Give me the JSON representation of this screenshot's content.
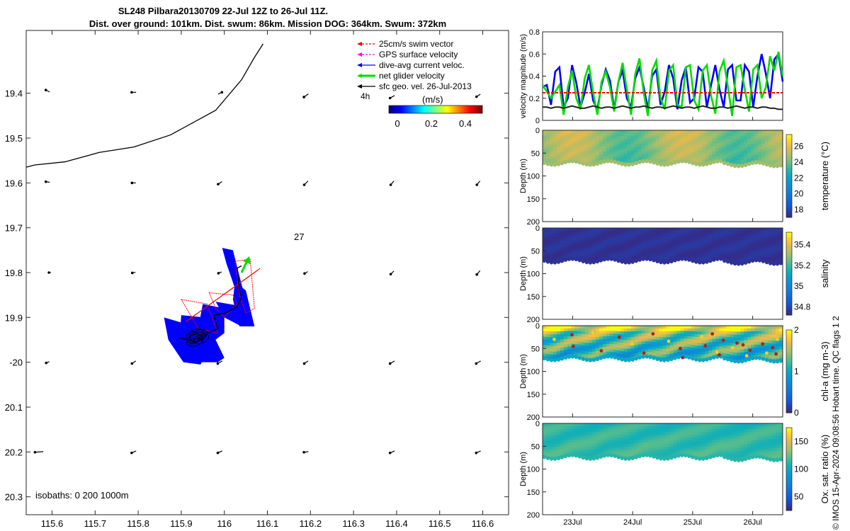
{
  "header": {
    "title_line1": "SL248 Pilbara20130709 22-Jul 12Z to 26-Jul 11Z.",
    "title_line2": "Dist. over ground: 101km. Dist. swum: 86km. Mission DOG: 364km. Swum: 372km"
  },
  "side_note": "© IMOS 15-Apr-2024 09:08:56 Hobart time. QC flags 1  2",
  "colors": {
    "swim_vector": "#ff0000",
    "gps_velocity": "#ff00ff",
    "dive_avg": "#0000ff",
    "net_glider": "#00dd00",
    "sfc_geo": "#000000",
    "coast": "#000000",
    "track": "#000000"
  },
  "chart_data": [
    {
      "type": "scatter",
      "name": "map",
      "xlim": [
        115.54,
        116.66
      ],
      "ylim": [
        -20.34,
        -19.26
      ],
      "x_ticks": [
        115.6,
        115.7,
        115.8,
        115.9,
        116.0,
        116.1,
        116.2,
        116.3,
        116.4,
        116.5,
        116.6
      ],
      "x_tick_labels": [
        "115.6",
        "115.7",
        "115.8",
        "115.9",
        "116",
        "116.1",
        "116.2",
        "116.3",
        "116.4",
        "116.5",
        "116.6"
      ],
      "y_ticks": [
        -19.4,
        -19.5,
        -19.6,
        -19.7,
        -19.8,
        -19.9,
        -20.0,
        -20.1,
        -20.2,
        -20.3
      ],
      "y_tick_labels": [
        "19.4",
        "19.5",
        "19.6",
        "19.7",
        "19.8",
        "19.9",
        "-20",
        "20.1",
        "20.2",
        "20.3"
      ],
      "legend": {
        "placement": "top-right",
        "items": [
          {
            "label": "25cm/s swim vector",
            "color": "#ff0000",
            "style": "dashed"
          },
          {
            "label": "GPS surface velocity",
            "color": "#ff00ff",
            "style": "dashed"
          },
          {
            "label": "dive-avg current veloc.",
            "color": "#0000ff",
            "style": "solid"
          },
          {
            "label": "net glider velocity",
            "color": "#00dd00",
            "style": "thick"
          },
          {
            "label": "sfc geo. vel. 26-Jul-2013",
            "color": "#000000",
            "style": "solid"
          }
        ]
      },
      "scale_label": "4h",
      "colorbar": {
        "label": "(m/s)",
        "ticks": [
          0,
          0.2,
          0.4
        ],
        "tick_labels": [
          "0",
          "0.2",
          "0.4"
        ],
        "range": [
          -0.05,
          0.5
        ]
      },
      "annotation": "27",
      "isobaths_label": "isobaths: 0   200  1000m",
      "coastline": [
        [
          115.54,
          -19.565
        ],
        [
          115.56,
          -19.56
        ],
        [
          115.63,
          -19.553
        ],
        [
          115.71,
          -19.532
        ],
        [
          115.79,
          -19.52
        ],
        [
          115.875,
          -19.493
        ],
        [
          115.98,
          -19.438
        ],
        [
          116.04,
          -19.37
        ],
        [
          116.07,
          -19.32
        ],
        [
          116.09,
          -19.29
        ]
      ],
      "glider_track": [
        [
          115.895,
          -19.945
        ],
        [
          115.935,
          -19.955
        ],
        [
          115.96,
          -19.935
        ],
        [
          115.985,
          -19.925
        ],
        [
          115.975,
          -19.895
        ],
        [
          116.005,
          -19.89
        ],
        [
          116.03,
          -19.875
        ],
        [
          116.04,
          -19.855
        ],
        [
          116.035,
          -19.84
        ],
        [
          116.03,
          -19.79
        ],
        [
          116.04,
          -19.785
        ]
      ],
      "net_velocity_arrow": [
        [
          116.04,
          -19.8
        ],
        [
          116.055,
          -19.77
        ]
      ],
      "geo_vectors": [
        {
          "x": 115.59,
          "y": -19.395,
          "u": 0.006,
          "v": -0.003
        },
        {
          "x": 115.79,
          "y": -19.398,
          "u": 0.007,
          "v": 0.0
        },
        {
          "x": 115.99,
          "y": -19.4,
          "u": -0.006,
          "v": -0.003
        },
        {
          "x": 116.19,
          "y": -19.405,
          "u": 0.007,
          "v": 0.005
        },
        {
          "x": 116.39,
          "y": -19.408,
          "u": 0.007,
          "v": 0.004
        },
        {
          "x": 116.59,
          "y": -19.405,
          "u": 0.006,
          "v": 0.004
        },
        {
          "x": 115.59,
          "y": -19.598,
          "u": 0.006,
          "v": -0.001
        },
        {
          "x": 115.79,
          "y": -19.6,
          "u": 0.006,
          "v": 0.0
        },
        {
          "x": 115.99,
          "y": -19.6,
          "u": 0.006,
          "v": 0.004
        },
        {
          "x": 116.19,
          "y": -19.6,
          "u": 0.006,
          "v": 0.006
        },
        {
          "x": 116.39,
          "y": -19.6,
          "u": 0.005,
          "v": 0.006
        },
        {
          "x": 116.59,
          "y": -19.6,
          "u": 0.005,
          "v": 0.006
        },
        {
          "x": 115.595,
          "y": -19.8,
          "u": 0.003,
          "v": 0.0
        },
        {
          "x": 115.79,
          "y": -19.8,
          "u": 0.005,
          "v": 0.001
        },
        {
          "x": 115.99,
          "y": -19.8,
          "u": 0.005,
          "v": 0.002
        },
        {
          "x": 116.19,
          "y": -19.8,
          "u": 0.005,
          "v": 0.003
        },
        {
          "x": 116.39,
          "y": -19.8,
          "u": 0.005,
          "v": 0.005
        },
        {
          "x": 116.59,
          "y": -19.8,
          "u": 0.005,
          "v": 0.006
        },
        {
          "x": 115.59,
          "y": -20.0,
          "u": 0.005,
          "v": 0.002
        },
        {
          "x": 115.79,
          "y": -20.0,
          "u": 0.006,
          "v": 0.004
        },
        {
          "x": 115.99,
          "y": -20.0,
          "u": 0.007,
          "v": 0.004
        },
        {
          "x": 116.19,
          "y": -20.0,
          "u": 0.006,
          "v": 0.004
        },
        {
          "x": 116.39,
          "y": -20.0,
          "u": 0.007,
          "v": 0.004
        },
        {
          "x": 116.59,
          "y": -20.0,
          "u": 0.007,
          "v": 0.004
        },
        {
          "x": 115.57,
          "y": -20.2,
          "u": 0.013,
          "v": 0.001
        },
        {
          "x": 115.79,
          "y": -20.2,
          "u": 0.007,
          "v": 0.003
        },
        {
          "x": 115.99,
          "y": -20.2,
          "u": 0.007,
          "v": 0.003
        },
        {
          "x": 116.19,
          "y": -20.2,
          "u": 0.007,
          "v": 0.001
        },
        {
          "x": 116.39,
          "y": -20.2,
          "u": 0.007,
          "v": 0.003
        },
        {
          "x": 116.59,
          "y": -20.2,
          "u": 0.007,
          "v": 0.003
        }
      ]
    },
    {
      "type": "line",
      "name": "velocity",
      "ylabel": "velocity magnitude (m/s)",
      "ylim": [
        0,
        0.8
      ],
      "y_ticks": [
        0,
        0.2,
        0.4,
        0.6,
        0.8
      ],
      "xlim": [
        0,
        4.0
      ],
      "series": [
        {
          "color": "#0000ff",
          "values": [
            0.3,
            0.32,
            0.14,
            0.44,
            0.48,
            0.12,
            0.2,
            0.5,
            0.34,
            0.12,
            0.25,
            0.42,
            0.18,
            0.1,
            0.32,
            0.46,
            0.36,
            0.1,
            0.35,
            0.45,
            0.2,
            0.12,
            0.38,
            0.48,
            0.3,
            0.1,
            0.4,
            0.46,
            0.14,
            0.26,
            0.5,
            0.38,
            0.1,
            0.36,
            0.48,
            0.16,
            0.2,
            0.48,
            0.44,
            0.12,
            0.32,
            0.5,
            0.28,
            0.12,
            0.46,
            0.5,
            0.18,
            0.18,
            0.5,
            0.44,
            0.12,
            0.4,
            0.6,
            0.42,
            0.2,
            0.55,
            0.6,
            0.35
          ]
        },
        {
          "color": "#00dd00",
          "values": [
            0.32,
            0.26,
            0.2,
            0.26,
            0.32,
            0.05,
            0.3,
            0.45,
            0.2,
            0.1,
            0.38,
            0.5,
            0.25,
            0.05,
            0.35,
            0.44,
            0.3,
            0.08,
            0.35,
            0.52,
            0.28,
            0.05,
            0.42,
            0.56,
            0.25,
            0.04,
            0.45,
            0.54,
            0.2,
            0.1,
            0.45,
            0.5,
            0.14,
            0.12,
            0.48,
            0.5,
            0.18,
            0.1,
            0.45,
            0.5,
            0.22,
            0.06,
            0.44,
            0.54,
            0.3,
            0.04,
            0.48,
            0.5,
            0.28,
            0.08,
            0.46,
            0.5,
            0.2,
            0.3,
            0.58,
            0.45,
            0.62,
            0.4
          ]
        },
        {
          "color": "#ff0000",
          "dashed": true,
          "values": [
            0.25,
            0.25,
            0.25,
            0.25,
            0.25,
            0.25,
            0.25,
            0.25,
            0.25,
            0.25,
            0.25,
            0.25,
            0.25,
            0.25,
            0.25,
            0.25,
            0.25,
            0.25,
            0.25,
            0.25,
            0.25,
            0.25,
            0.25,
            0.25,
            0.25,
            0.25,
            0.25,
            0.25,
            0.25,
            0.25,
            0.25,
            0.25,
            0.25,
            0.25,
            0.25,
            0.25,
            0.25,
            0.25,
            0.25,
            0.25,
            0.25,
            0.25,
            0.25,
            0.25,
            0.25,
            0.25,
            0.25,
            0.25,
            0.25,
            0.25,
            0.25,
            0.25,
            0.25,
            0.25,
            0.25,
            0.25,
            0.25,
            0.25
          ]
        },
        {
          "color": "#222222",
          "values": [
            0.12,
            0.12,
            0.11,
            0.12,
            0.12,
            0.11,
            0.12,
            0.13,
            0.12,
            0.11,
            0.11,
            0.12,
            0.13,
            0.12,
            0.11,
            0.12,
            0.12,
            0.11,
            0.12,
            0.13,
            0.12,
            0.11,
            0.12,
            0.12,
            0.13,
            0.12,
            0.11,
            0.12,
            0.12,
            0.11,
            0.12,
            0.13,
            0.12,
            0.11,
            0.12,
            0.12,
            0.11,
            0.12,
            0.13,
            0.12,
            0.11,
            0.11,
            0.12,
            0.12,
            0.11,
            0.12,
            0.13,
            0.12,
            0.11,
            0.12,
            0.12,
            0.11,
            0.12,
            0.12,
            0.11,
            0.11,
            0.1,
            0.1
          ]
        }
      ]
    },
    {
      "type": "heatmap",
      "name": "temperature",
      "ylabel": "Depth (m)",
      "cbar_label": "temperature (°C)",
      "cbar_ticks": [
        18,
        20,
        22,
        24,
        26
      ],
      "cbar_range": [
        17,
        27.5
      ],
      "colormap": "parula",
      "value": 24.8,
      "depth": 72,
      "ylim": [
        0,
        200
      ],
      "y_ticks": [
        0,
        50,
        100,
        150,
        200
      ]
    },
    {
      "type": "heatmap",
      "name": "salinity",
      "ylabel": "Depth (m)",
      "cbar_label": "salinity",
      "cbar_ticks": [
        34.8,
        35,
        35.2,
        35.4
      ],
      "cbar_range": [
        34.72,
        35.52
      ],
      "colormap": "parula",
      "value": 34.74,
      "depth": 72,
      "ylim": [
        0,
        200
      ],
      "y_ticks": [
        0,
        50,
        100,
        150,
        200
      ]
    },
    {
      "type": "heatmap",
      "name": "chl-a",
      "ylabel": "Depth (m)",
      "cbar_label": "chl-a (mg m-3)",
      "cbar_ticks": [
        0,
        1,
        2
      ],
      "cbar_range": [
        0,
        2
      ],
      "colormap": "parula",
      "value": 1.3,
      "depth": 72,
      "ylim": [
        0,
        200
      ],
      "y_ticks": [
        0,
        50,
        100,
        150,
        200
      ]
    },
    {
      "type": "heatmap",
      "name": "oxygen",
      "ylabel": "Depth (m)",
      "cbar_label": "Ox. sat. ratio (%)",
      "cbar_ticks": [
        50,
        100,
        150
      ],
      "cbar_range": [
        25,
        175
      ],
      "colormap": "parula",
      "value": 112,
      "depth": 74,
      "ylim": [
        0,
        200
      ],
      "y_ticks": [
        0,
        50,
        100,
        150,
        200
      ]
    }
  ],
  "time_axis": {
    "tick_labels": [
      "23Jul",
      "24Jul",
      "25Jul",
      "26Jul"
    ],
    "positions_days": [
      0.5,
      1.5,
      2.5,
      3.5
    ],
    "xlim_days": [
      0,
      4.0
    ]
  }
}
